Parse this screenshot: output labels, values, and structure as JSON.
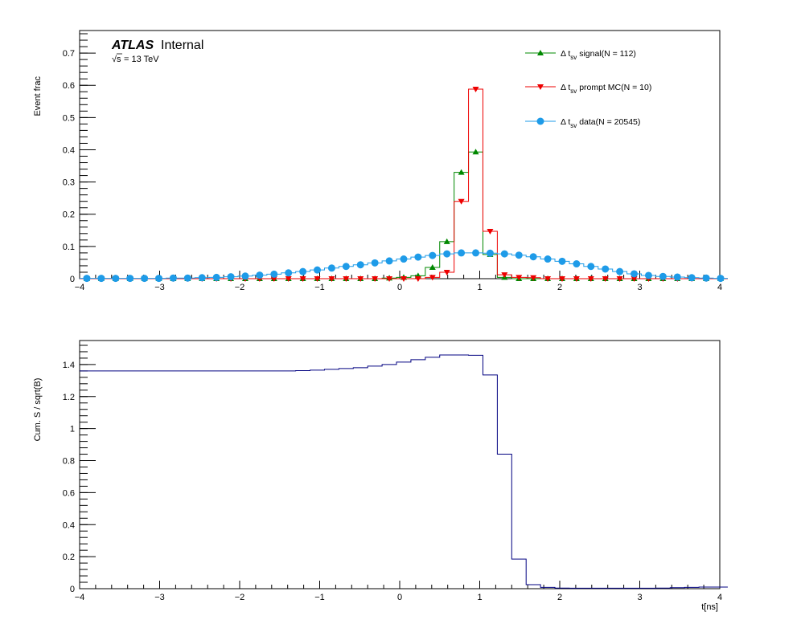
{
  "branding": {
    "experiment": "ATLAS",
    "status": "Internal",
    "energy": "= 13 TeV",
    "sqrt_symbol": "√s"
  },
  "chart_data": [
    {
      "type": "line",
      "style": "step-histogram-with-markers",
      "xlabel": "",
      "ylabel": "Event frac",
      "xlim": [
        -4,
        4
      ],
      "ylim": [
        0,
        0.77
      ],
      "x_ticks": [
        -4,
        -3,
        -2,
        -1,
        0,
        1,
        2,
        3,
        4
      ],
      "x_tick_labels": [
        "−4",
        "−3",
        "−2",
        "−1",
        "0",
        "1",
        "2",
        "3",
        "4"
      ],
      "y_ticks": [
        0,
        0.1,
        0.2,
        0.3,
        0.4,
        0.5,
        0.6,
        0.7
      ],
      "y_tick_labels": [
        "0",
        "0.1",
        "0.2",
        "0.3",
        "0.4",
        "0.5",
        "0.6",
        "0.7"
      ],
      "bin_edges_min": -4.0,
      "bin_width": 0.18,
      "legend_position": "top-right",
      "series": [
        {
          "legend_prefix": "Δ t",
          "legend_sub": "sv",
          "legend_suffix": " signal(N = 112)",
          "color": "#008800",
          "marker": "triangle-up",
          "values": [
            0,
            0,
            0,
            0,
            0,
            0,
            0,
            0,
            0,
            0,
            0,
            0,
            0,
            0,
            0,
            0,
            0,
            0,
            0,
            0,
            0,
            0.002,
            0.004,
            0.009,
            0.035,
            0.115,
            0.33,
            0.393,
            0.075,
            0.004,
            0,
            0,
            0,
            0,
            0,
            0,
            0,
            0,
            0,
            0,
            0,
            0,
            0,
            0,
            0
          ]
        },
        {
          "legend_prefix": "Δ t",
          "legend_sub": "sv",
          "legend_suffix": " prompt MC(N = 10)",
          "color": "#ee0000",
          "marker": "triangle-down",
          "values": [
            0,
            0,
            0,
            0,
            0,
            0,
            0,
            0,
            0,
            0,
            0,
            0,
            0,
            0,
            0,
            0,
            0,
            0,
            0,
            0,
            0,
            0,
            0,
            0,
            0.004,
            0.02,
            0.24,
            0.588,
            0.147,
            0.012,
            0.004,
            0.003,
            0,
            0,
            0,
            0,
            0,
            0,
            0,
            0,
            0,
            0,
            0,
            0,
            0
          ]
        },
        {
          "legend_prefix": "Δ t",
          "legend_sub": "sv",
          "legend_suffix": " data(N = 20545)",
          "color": "#1e9be8",
          "marker": "circle",
          "values": [
            0.001,
            0.001,
            0.001,
            0.001,
            0.001,
            0.001,
            0.002,
            0.002,
            0.003,
            0.004,
            0.006,
            0.008,
            0.011,
            0.014,
            0.018,
            0.022,
            0.027,
            0.033,
            0.038,
            0.043,
            0.049,
            0.055,
            0.061,
            0.067,
            0.072,
            0.077,
            0.08,
            0.08,
            0.079,
            0.077,
            0.073,
            0.068,
            0.061,
            0.054,
            0.046,
            0.038,
            0.03,
            0.022,
            0.015,
            0.01,
            0.007,
            0.005,
            0.003,
            0.002,
            0.001
          ]
        }
      ]
    },
    {
      "type": "line",
      "style": "step-histogram",
      "xlabel": "t[ns]",
      "ylabel": "Cum. S / sqrt(B)",
      "xlim": [
        -4,
        4
      ],
      "ylim": [
        0,
        1.55
      ],
      "x_ticks": [
        -4,
        -3,
        -2,
        -1,
        0,
        1,
        2,
        3,
        4
      ],
      "x_tick_labels": [
        "−4",
        "−3",
        "−2",
        "−1",
        "0",
        "1",
        "2",
        "3",
        "4"
      ],
      "y_ticks": [
        0,
        0.2,
        0.4,
        0.6,
        0.8,
        1,
        1.2,
        1.4
      ],
      "y_tick_labels": [
        "0",
        "0.2",
        "0.4",
        "0.6",
        "0.8",
        "1",
        "1.2",
        "1.4"
      ],
      "bin_edges_min": -4.0,
      "bin_width": 0.18,
      "series": [
        {
          "color": "#000080",
          "values": [
            1.36,
            1.36,
            1.36,
            1.36,
            1.36,
            1.36,
            1.36,
            1.36,
            1.36,
            1.36,
            1.36,
            1.36,
            1.36,
            1.36,
            1.36,
            1.362,
            1.365,
            1.37,
            1.375,
            1.38,
            1.39,
            1.4,
            1.415,
            1.43,
            1.445,
            1.46,
            1.46,
            1.458,
            1.335,
            0.84,
            0.185,
            0.025,
            0.008,
            0.004,
            0.003,
            0.003,
            0.003,
            0.003,
            0.003,
            0.003,
            0.004,
            0.006,
            0.008,
            0.01,
            0.01
          ]
        }
      ]
    }
  ]
}
